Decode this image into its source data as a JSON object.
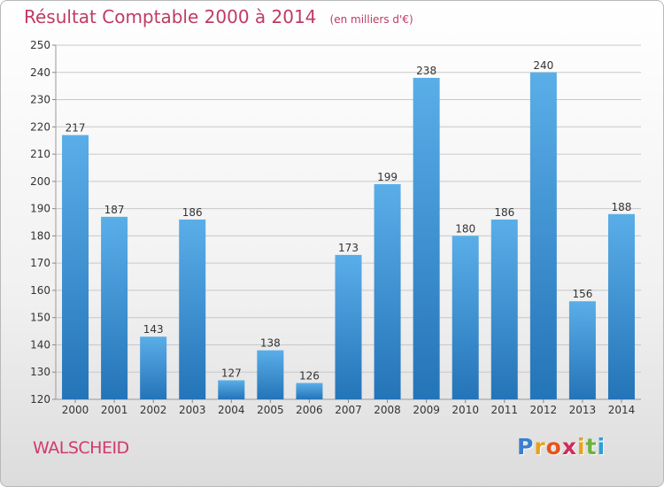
{
  "header": {
    "title": "Résultat Comptable 2000 à 2014",
    "unit": "(en milliers d'€)"
  },
  "place_name": "WALSCHEID",
  "logo": {
    "text": "Proxiti",
    "letters": [
      "P",
      "r",
      "o",
      "x",
      "i",
      "t",
      "i"
    ],
    "colors": [
      "#3a7fd0",
      "#e8a21c",
      "#e8531c",
      "#d12b5c",
      "#e8a21c",
      "#6db33f",
      "#2f9ed8"
    ]
  },
  "colors": {
    "bar_top": "#5aaee8",
    "bar_bottom": "#2474b8",
    "axis_text": "#333333",
    "grid": "#c8c8c8"
  },
  "chart_data": {
    "type": "bar",
    "categories": [
      "2000",
      "2001",
      "2002",
      "2003",
      "2004",
      "2005",
      "2006",
      "2007",
      "2008",
      "2009",
      "2010",
      "2011",
      "2012",
      "2013",
      "2014"
    ],
    "values": [
      217,
      187,
      143,
      186,
      127,
      138,
      126,
      173,
      199,
      238,
      180,
      186,
      240,
      156,
      188
    ],
    "ylim": [
      120,
      250
    ],
    "yticks": [
      120,
      130,
      140,
      150,
      160,
      170,
      180,
      190,
      200,
      210,
      220,
      230,
      240,
      250
    ],
    "grid": true,
    "data_labels": true
  }
}
